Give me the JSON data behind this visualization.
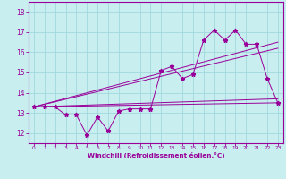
{
  "title": "",
  "xlabel": "Windchill (Refroidissement éolien,°C)",
  "ylabel": "",
  "bg_color": "#c8eef0",
  "grid_color": "#a0d8dc",
  "line_color": "#990099",
  "spine_color": "#990099",
  "xlim": [
    -0.5,
    23.5
  ],
  "ylim": [
    11.5,
    18.5
  ],
  "xticks": [
    0,
    1,
    2,
    3,
    4,
    5,
    6,
    7,
    8,
    9,
    10,
    11,
    12,
    13,
    14,
    15,
    16,
    17,
    18,
    19,
    20,
    21,
    22,
    23
  ],
  "yticks": [
    12,
    13,
    14,
    15,
    16,
    17,
    18
  ],
  "line1_x": [
    0,
    1,
    2,
    3,
    4,
    5,
    6,
    7,
    8,
    9,
    10,
    11,
    12,
    13,
    14,
    15,
    16,
    17,
    18,
    19,
    20,
    21,
    22,
    23
  ],
  "line1_y": [
    13.3,
    13.3,
    13.3,
    12.9,
    12.9,
    11.9,
    12.8,
    12.1,
    13.1,
    13.2,
    13.2,
    13.2,
    15.1,
    15.3,
    14.7,
    14.9,
    16.6,
    17.1,
    16.6,
    17.1,
    16.4,
    16.4,
    14.7,
    13.5
  ],
  "line2_x": [
    0,
    23
  ],
  "line2_y": [
    13.3,
    16.2
  ],
  "line3_x": [
    0,
    23
  ],
  "line3_y": [
    13.3,
    16.5
  ],
  "line4_x": [
    0,
    23
  ],
  "line4_y": [
    13.3,
    13.5
  ],
  "line5_x": [
    0,
    23
  ],
  "line5_y": [
    13.3,
    13.7
  ]
}
